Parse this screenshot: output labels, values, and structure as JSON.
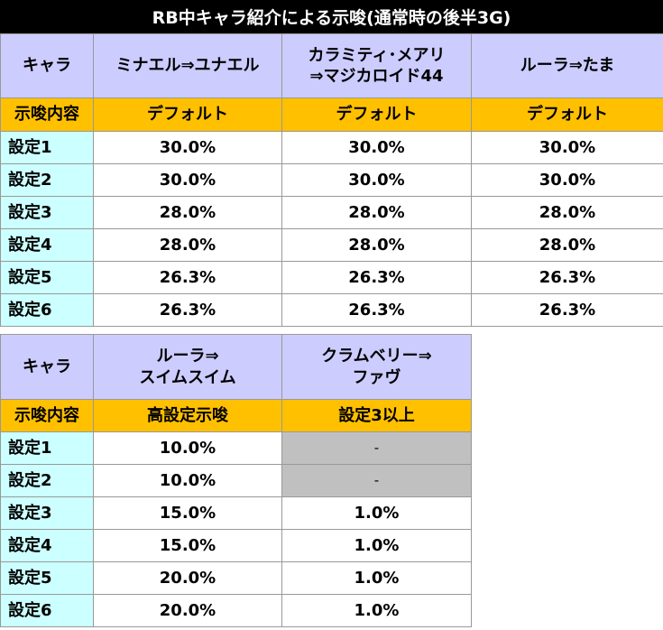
{
  "title": "RB中キャラ紹介による示唆(通常時の後半3G)",
  "table1": {
    "chara_label": "キャラ",
    "hint_label": "示唆内容",
    "columns": [
      {
        "name_lines": [
          "ミナエル⇒ユナエル"
        ],
        "hint": "デフォルト"
      },
      {
        "name_lines": [
          "カラミティ･メアリ",
          "⇒マジカロイド44"
        ],
        "hint": "デフォルト"
      },
      {
        "name_lines": [
          "ルーラ⇒たま"
        ],
        "hint": "デフォルト"
      }
    ],
    "rows": [
      {
        "label": "設定1",
        "values": [
          "30.0%",
          "30.0%",
          "30.0%"
        ]
      },
      {
        "label": "設定2",
        "values": [
          "30.0%",
          "30.0%",
          "30.0%"
        ]
      },
      {
        "label": "設定3",
        "values": [
          "28.0%",
          "28.0%",
          "28.0%"
        ]
      },
      {
        "label": "設定4",
        "values": [
          "28.0%",
          "28.0%",
          "28.0%"
        ]
      },
      {
        "label": "設定5",
        "values": [
          "26.3%",
          "26.3%",
          "26.3%"
        ]
      },
      {
        "label": "設定6",
        "values": [
          "26.3%",
          "26.3%",
          "26.3%"
        ]
      }
    ]
  },
  "table2": {
    "chara_label": "キャラ",
    "hint_label": "示唆内容",
    "columns": [
      {
        "name_lines": [
          "ルーラ⇒",
          "スイムスイム"
        ],
        "hint": "高設定示唆"
      },
      {
        "name_lines": [
          "クラムベリー⇒",
          "ファヴ"
        ],
        "hint": "設定3以上"
      }
    ],
    "rows": [
      {
        "label": "設定1",
        "values": [
          "10.0%",
          "-"
        ]
      },
      {
        "label": "設定2",
        "values": [
          "10.0%",
          "-"
        ]
      },
      {
        "label": "設定3",
        "values": [
          "15.0%",
          "1.0%"
        ]
      },
      {
        "label": "設定4",
        "values": [
          "15.0%",
          "1.0%"
        ]
      },
      {
        "label": "設定5",
        "values": [
          "20.0%",
          "1.0%"
        ]
      },
      {
        "label": "設定6",
        "values": [
          "20.0%",
          "1.0%"
        ]
      }
    ]
  },
  "colors": {
    "header_bg": "#ccccff",
    "hint_bg": "#ffc000",
    "row_label_bg": "#ccffff",
    "na_bg": "#c0c0c0",
    "title_bg": "#000000"
  }
}
